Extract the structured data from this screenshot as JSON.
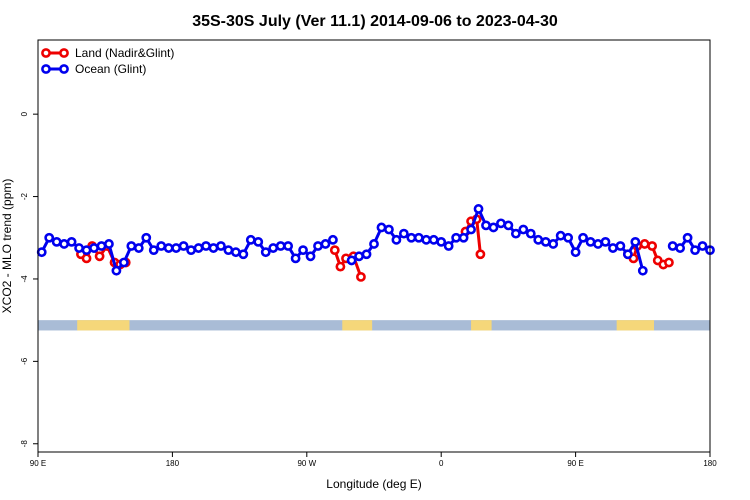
{
  "chart_data": {
    "type": "line",
    "title": "35S-30S July (Ver 11.1)   2014-09-06 to 2023-04-30",
    "xlabel": "Longitude (deg E)",
    "ylabel": "XCO2 - MLO trend (ppm)",
    "xlim": [
      90,
      450
    ],
    "ylim": [
      -8.2,
      1.8
    ],
    "x_ticks": [
      {
        "value": 90,
        "label": "90 E"
      },
      {
        "value": 162,
        "label": "180"
      },
      {
        "value": 234,
        "label": "90 W"
      },
      {
        "value": 306,
        "label": "0"
      },
      {
        "value": 378,
        "label": "90 E"
      },
      {
        "value": 450,
        "label": "180"
      }
    ],
    "y_ticks": [
      {
        "value": 0,
        "label": "0"
      },
      {
        "value": -2,
        "label": "-2"
      },
      {
        "value": -4,
        "label": "-4"
      },
      {
        "value": -6,
        "label": "-6"
      },
      {
        "value": -8,
        "label": "-8"
      }
    ],
    "grid": false,
    "legend_position": "top-left",
    "land_mask": {
      "y_range": [
        -5.25,
        -5.0
      ],
      "ocean_color": "#a9bcd6",
      "land_color": "#f5d77a",
      "land_spans": [
        [
          111,
          139
        ],
        [
          253,
          269
        ],
        [
          322,
          333
        ],
        [
          400,
          420
        ]
      ]
    },
    "series": [
      {
        "name": "Land (Nadir&Glint)",
        "color": "#ee0000",
        "segments": [
          [
            [
              113,
              -3.4
            ],
            [
              116,
              -3.5
            ],
            [
              119,
              -3.2
            ],
            [
              123,
              -3.45
            ],
            [
              127,
              -3.2
            ],
            [
              131,
              -3.6
            ],
            [
              134,
              -3.65
            ],
            [
              137,
              -3.6
            ]
          ],
          [
            [
              249,
              -3.3
            ],
            [
              252,
              -3.7
            ],
            [
              255,
              -3.5
            ],
            [
              259,
              -3.45
            ],
            [
              263,
              -3.95
            ]
          ],
          [
            [
              319,
              -2.85
            ],
            [
              322,
              -2.6
            ],
            [
              325,
              -2.55
            ],
            [
              327,
              -3.4
            ]
          ],
          [
            [
              406,
              -3.4
            ],
            [
              409,
              -3.5
            ],
            [
              411,
              -3.2
            ],
            [
              415,
              -3.15
            ],
            [
              419,
              -3.2
            ],
            [
              422,
              -3.55
            ],
            [
              425,
              -3.65
            ],
            [
              428,
              -3.6
            ]
          ]
        ]
      },
      {
        "name": "Ocean (Glint)",
        "color": "#0000ee",
        "segments": [
          [
            [
              92,
              -3.35
            ],
            [
              96,
              -3.0
            ],
            [
              100,
              -3.1
            ],
            [
              104,
              -3.15
            ],
            [
              108,
              -3.1
            ],
            [
              112,
              -3.25
            ],
            [
              116,
              -3.3
            ],
            [
              120,
              -3.25
            ],
            [
              124,
              -3.2
            ],
            [
              128,
              -3.15
            ],
            [
              132,
              -3.8
            ],
            [
              136,
              -3.6
            ],
            [
              140,
              -3.2
            ],
            [
              144,
              -3.25
            ],
            [
              148,
              -3.0
            ],
            [
              152,
              -3.3
            ],
            [
              156,
              -3.2
            ],
            [
              160,
              -3.25
            ],
            [
              164,
              -3.25
            ],
            [
              168,
              -3.2
            ],
            [
              172,
              -3.3
            ],
            [
              176,
              -3.25
            ],
            [
              180,
              -3.2
            ],
            [
              184,
              -3.25
            ],
            [
              188,
              -3.2
            ],
            [
              192,
              -3.3
            ],
            [
              196,
              -3.35
            ],
            [
              200,
              -3.4
            ],
            [
              204,
              -3.05
            ],
            [
              208,
              -3.1
            ],
            [
              212,
              -3.35
            ],
            [
              216,
              -3.25
            ],
            [
              220,
              -3.2
            ],
            [
              224,
              -3.2
            ],
            [
              228,
              -3.5
            ],
            [
              232,
              -3.3
            ],
            [
              236,
              -3.45
            ],
            [
              240,
              -3.2
            ],
            [
              244,
              -3.15
            ],
            [
              248,
              -3.05
            ]
          ],
          [
            [
              258,
              -3.55
            ],
            [
              262,
              -3.45
            ],
            [
              266,
              -3.4
            ],
            [
              270,
              -3.15
            ],
            [
              274,
              -2.75
            ],
            [
              278,
              -2.8
            ],
            [
              282,
              -3.05
            ],
            [
              286,
              -2.9
            ],
            [
              290,
              -3.0
            ],
            [
              294,
              -3.0
            ],
            [
              298,
              -3.05
            ],
            [
              302,
              -3.05
            ],
            [
              306,
              -3.1
            ],
            [
              310,
              -3.2
            ],
            [
              314,
              -3.0
            ],
            [
              318,
              -3.0
            ],
            [
              322,
              -2.8
            ],
            [
              326,
              -2.3
            ],
            [
              330,
              -2.7
            ],
            [
              334,
              -2.75
            ],
            [
              338,
              -2.65
            ],
            [
              342,
              -2.7
            ],
            [
              346,
              -2.9
            ],
            [
              350,
              -2.8
            ],
            [
              354,
              -2.9
            ],
            [
              358,
              -3.05
            ],
            [
              362,
              -3.1
            ],
            [
              366,
              -3.15
            ],
            [
              370,
              -2.95
            ],
            [
              374,
              -3.0
            ],
            [
              378,
              -3.35
            ],
            [
              382,
              -3.0
            ],
            [
              386,
              -3.1
            ],
            [
              390,
              -3.15
            ],
            [
              394,
              -3.1
            ],
            [
              398,
              -3.25
            ],
            [
              402,
              -3.2
            ],
            [
              406,
              -3.4
            ],
            [
              410,
              -3.1
            ],
            [
              414,
              -3.8
            ]
          ],
          [
            [
              430,
              -3.2
            ],
            [
              434,
              -3.25
            ],
            [
              438,
              -3.0
            ],
            [
              442,
              -3.3
            ],
            [
              446,
              -3.2
            ],
            [
              450,
              -3.3
            ]
          ]
        ]
      }
    ]
  }
}
